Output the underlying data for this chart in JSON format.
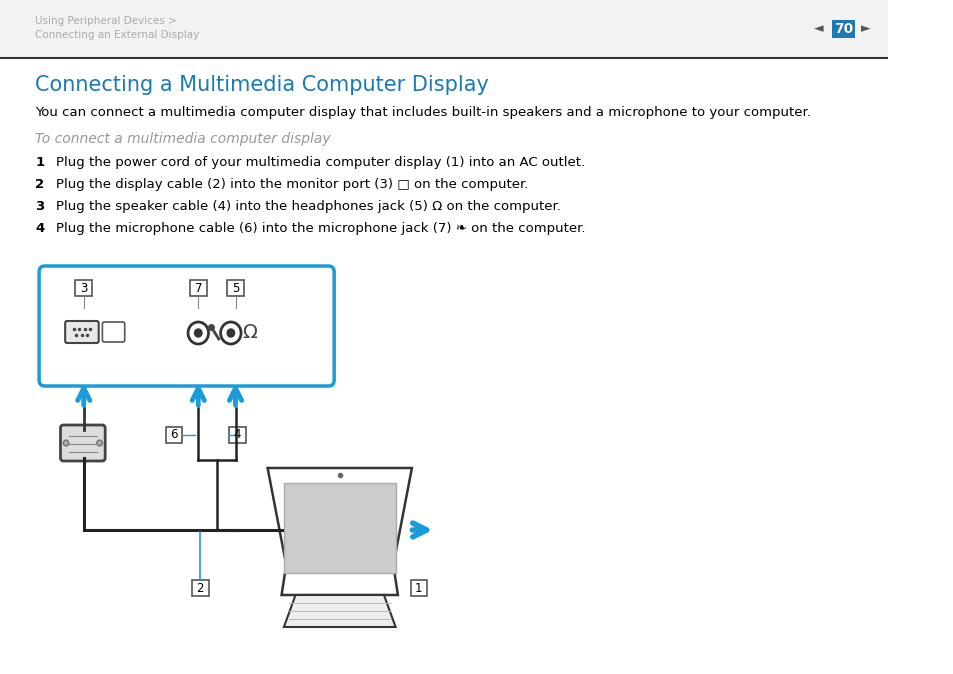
{
  "bg_color": "#ffffff",
  "header_text_line1": "Using Peripheral Devices >",
  "header_text_line2": "Connecting an External Display",
  "header_text_color": "#aaaaaa",
  "page_number": "70",
  "title": "Connecting a Multimedia Computer Display",
  "title_color": "#1a7ab5",
  "title_fontsize": 15,
  "body_text": "You can connect a multimedia computer display that includes built-in speakers and a microphone to your computer.",
  "body_color": "#000000",
  "body_fontsize": 9.5,
  "subheading": "To connect a multimedia computer display",
  "subheading_color": "#999999",
  "subheading_fontsize": 10,
  "steps": [
    "Plug the power cord of your multimedia computer display (1) into an AC outlet.",
    "Plug the display cable (2) into the monitor port (3) □ on the computer.",
    "Plug the speaker cable (4) into the headphones jack (5) Ω on the computer.",
    "Plug the microphone cable (6) into the microphone jack (7) ❧ on the computer."
  ],
  "steps_color": "#000000",
  "steps_fontsize": 9.5,
  "arrow_color": "#1a9cd8",
  "box_color": "#1a9cd8"
}
